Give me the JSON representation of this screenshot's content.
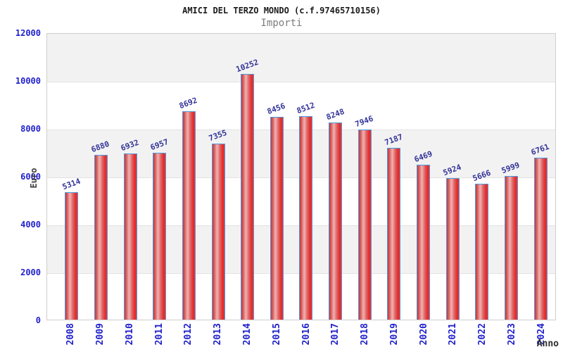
{
  "chart": {
    "title": "AMICI DEL TERZO MONDO (c.f.97465710156)",
    "subtitle": "Importi"
  },
  "chart_data": {
    "type": "bar",
    "title": "AMICI DEL TERZO MONDO (c.f.97465710156)",
    "subtitle": "Importi",
    "xlabel": "Anno",
    "ylabel": "Euro",
    "categories": [
      "2008",
      "2009",
      "2010",
      "2011",
      "2012",
      "2013",
      "2014",
      "2015",
      "2016",
      "2017",
      "2018",
      "2019",
      "2020",
      "2021",
      "2022",
      "2023",
      "2024"
    ],
    "values": [
      5314,
      6880,
      6932,
      6957,
      8692,
      7355,
      10252,
      8456,
      8512,
      8248,
      7946,
      7187,
      6469,
      5924,
      5666,
      5999,
      6761
    ],
    "ylim": [
      0,
      12000
    ],
    "yticks": [
      0,
      2000,
      4000,
      6000,
      8000,
      10000,
      12000
    ],
    "grid": "horizontal-bands-alternating",
    "legend": "none",
    "bar_labels": "values-rotated-above-bars",
    "colors": {
      "bar_fill_edge": "#e03030",
      "bar_fill_center": "#f2b2b2",
      "bar_border": "#4a9ade",
      "axis_tick_label": "#2121cd",
      "value_label": "#333399",
      "axis_title": "#3d3d3d",
      "band_gray": "#f2f2f2",
      "band_white": "#ffffff",
      "gridline": "#e2e2e2",
      "plot_border": "#cfcfcf",
      "title": "#1b1b1b",
      "subtitle": "#7d7d7d"
    }
  }
}
